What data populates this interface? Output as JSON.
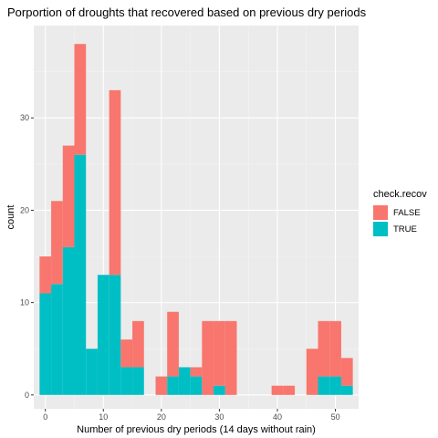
{
  "chart_data": {
    "type": "bar",
    "title": "Porportion of droughts that recovered based on previous dry periods",
    "xlabel": "Number of previous dry periods (14 days without rain)",
    "ylabel": "count",
    "binwidth": 2,
    "x_range": [
      -2,
      54
    ],
    "y_range": [
      -1.5,
      40
    ],
    "x_ticks": [
      0,
      10,
      20,
      30,
      40,
      50
    ],
    "y_ticks": [
      0,
      10,
      20,
      30
    ],
    "legend": {
      "title": "check.recov",
      "position": "right"
    },
    "bin_centers": [
      0,
      2,
      4,
      6,
      8,
      10,
      12,
      14,
      16,
      18,
      20,
      22,
      24,
      26,
      28,
      30,
      32,
      34,
      36,
      38,
      40,
      42,
      44,
      46,
      48,
      50,
      52
    ],
    "series": [
      {
        "name": "FALSE",
        "color": "#F8766D",
        "values": [
          4,
          9,
          11,
          12,
          0,
          0,
          20,
          3,
          5,
          0,
          2,
          7,
          0,
          1,
          8,
          7,
          8,
          0,
          0,
          0,
          1,
          1,
          0,
          5,
          6,
          6,
          3
        ]
      },
      {
        "name": "TRUE",
        "color": "#00BFC4",
        "values": [
          11,
          12,
          16,
          26,
          5,
          13,
          13,
          3,
          3,
          0,
          0,
          2,
          3,
          2,
          0,
          1,
          0,
          0,
          0,
          0,
          0,
          0,
          0,
          0,
          2,
          2,
          1
        ]
      }
    ]
  }
}
